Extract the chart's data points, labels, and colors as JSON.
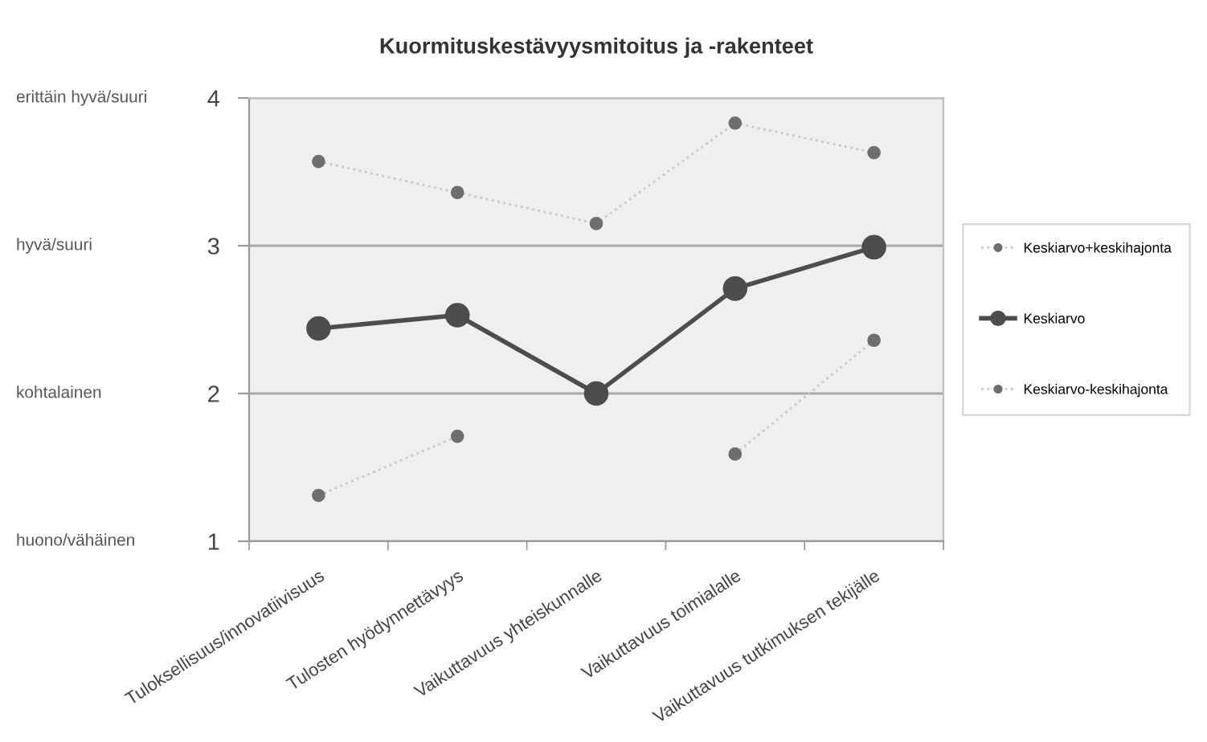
{
  "chart_data": {
    "type": "line",
    "title": "Kuormituskestävyysmitoitus ja -rakenteet",
    "categories": [
      "Tuloksellisuus/innovatiivisuus",
      "Tulosten hyödynnettävyys",
      "Vaikuttavuus yhteiskunnalle",
      "Vaikuttavuus toimialalle",
      "Vaikuttavuus tutkimuksen tekijälle"
    ],
    "series": [
      {
        "name": "Keskiarvo+keskihajonta",
        "color": "#6e6e6e",
        "line_style": "dotted",
        "values": [
          3.57,
          3.36,
          3.15,
          3.83,
          3.63
        ]
      },
      {
        "name": "Keskiarvo",
        "color": "#4d4d4d",
        "line_style": "solid",
        "values": [
          2.44,
          2.53,
          2.0,
          2.71,
          2.99
        ]
      },
      {
        "name": "Keskiarvo-keskihajonta",
        "color": "#6e6e6e",
        "line_style": "dotted",
        "values": [
          1.31,
          1.71,
          null,
          1.59,
          2.36
        ]
      }
    ],
    "ylim": [
      1,
      4
    ],
    "yticks": [
      1,
      2,
      3,
      4
    ],
    "annotations": [
      "erittäin hyvä/suuri",
      "hyvä/suuri",
      "kohtalainen",
      "huono/vähäinen"
    ],
    "grid": "y",
    "legend": "right",
    "marker": "circle"
  }
}
